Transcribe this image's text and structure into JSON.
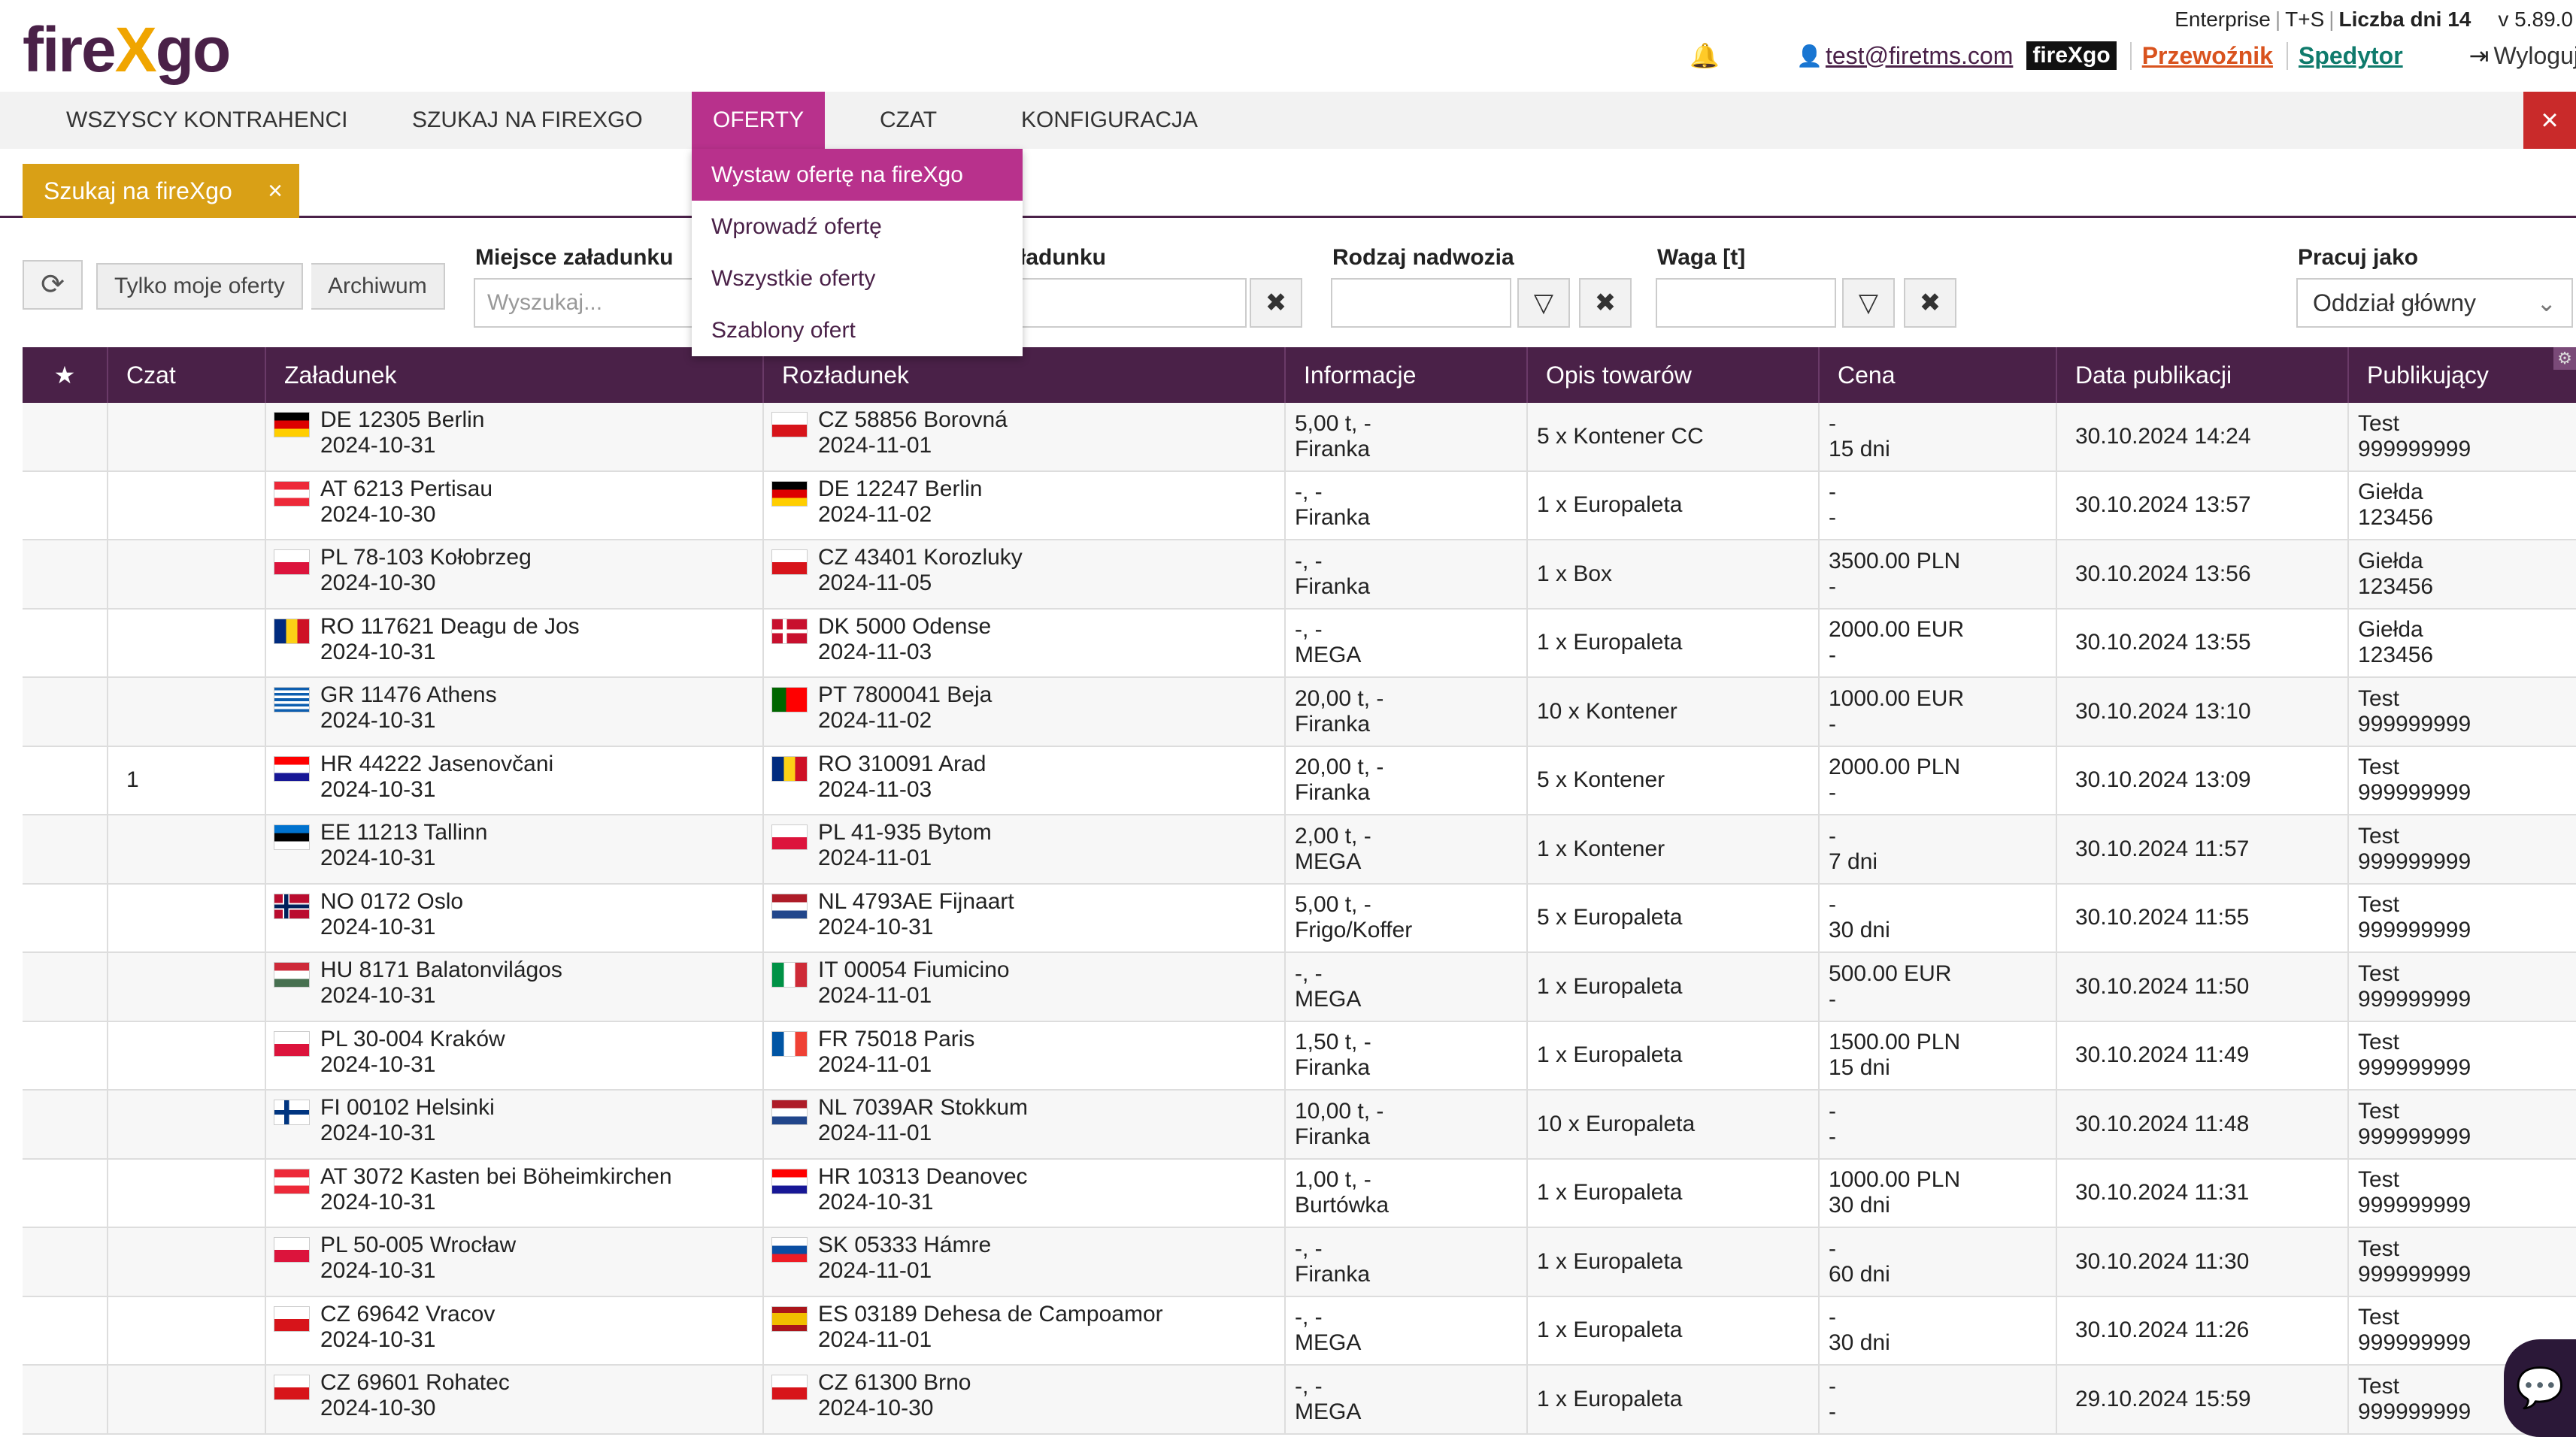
{
  "app": {
    "logo_fire": "fire",
    "logo_x": "X",
    "logo_go": "go",
    "edition": "Enterprise",
    "mode": "T+S",
    "days_label": "Liczba dni 14",
    "version": "v 5.89.0",
    "user_email": "test@firetms.com",
    "brand_tag": "fireXgo",
    "role_carrier": "Przewoźnik",
    "role_forwarder": "Spedytor",
    "logout": "Wyloguj"
  },
  "nav": {
    "items": [
      "Wszyscy kontrahenci",
      "Szukaj na fireXgo",
      "Oferty",
      "Czat",
      "Konfiguracja"
    ],
    "active": "Oferty",
    "close_icon": "×"
  },
  "dropdown": {
    "items": [
      "Wystaw ofertę na fireXgo",
      "Wprowadź ofertę",
      "Wszystkie oferty",
      "Szablony ofert"
    ],
    "active_index": 0
  },
  "tab": {
    "label": "Szukaj na fireXgo",
    "close": "×"
  },
  "filters": {
    "refresh_icon": "⟳",
    "my_offers": "Tylko moje oferty",
    "archive": "Archiwum",
    "loading_place_label": "Miejsce załadunku",
    "loading_place_placeholder": "Wyszukaj...",
    "unloading_place_label_partial": "ładunku",
    "unloading_placeholder_partial": "..",
    "clear_icon": "✖",
    "body_type_label": "Rodzaj nadwozia",
    "weight_label": "Waga [t]",
    "filter_icon": "▽",
    "work_as_label": "Pracuj jako",
    "work_as_value": "Oddział główny",
    "chevron": "⌄"
  },
  "table": {
    "star_header": "★",
    "headers": [
      "Czat",
      "Załadunek",
      "Rozładunek",
      "Informacje",
      "Opis towarów",
      "Cena",
      "Data publikacji",
      "Publikujący"
    ],
    "settings_icon": "⚙",
    "rows": [
      {
        "chat": "",
        "from_flag": "DE",
        "from": "DE 12305 Berlin",
        "from_date": "2024-10-31",
        "to_flag": "CZ",
        "to": "CZ 58856 Borovná",
        "to_date": "2024-11-01",
        "info1": "5,00 t, -",
        "info2": "Firanka",
        "goods": "5 x Kontener CC",
        "price1": "-",
        "price2": "15 dni",
        "published": "30.10.2024 14:24",
        "pub1": "Test",
        "pub2": "999999999"
      },
      {
        "chat": "",
        "from_flag": "AT",
        "from": "AT 6213 Pertisau",
        "from_date": "2024-10-30",
        "to_flag": "DE",
        "to": "DE 12247 Berlin",
        "to_date": "2024-11-02",
        "info1": "-, -",
        "info2": "Firanka",
        "goods": "1 x Europaleta",
        "price1": "-",
        "price2": "-",
        "published": "30.10.2024 13:57",
        "pub1": "Giełda",
        "pub2": "123456"
      },
      {
        "chat": "",
        "from_flag": "PL",
        "from": "PL 78-103 Kołobrzeg",
        "from_date": "2024-10-30",
        "to_flag": "CZ",
        "to": "CZ 43401 Korozluky",
        "to_date": "2024-11-05",
        "info1": "-, -",
        "info2": "Firanka",
        "goods": "1 x Box",
        "price1": "3500.00 PLN",
        "price2": "-",
        "published": "30.10.2024 13:56",
        "pub1": "Giełda",
        "pub2": "123456"
      },
      {
        "chat": "",
        "from_flag": "RO",
        "from": "RO 117621 Deagu de Jos",
        "from_date": "2024-10-31",
        "to_flag": "DK",
        "to": "DK 5000 Odense",
        "to_date": "2024-11-03",
        "info1": "-, -",
        "info2": "MEGA",
        "goods": "1 x Europaleta",
        "price1": "2000.00 EUR",
        "price2": "-",
        "published": "30.10.2024 13:55",
        "pub1": "Giełda",
        "pub2": "123456"
      },
      {
        "chat": "",
        "from_flag": "GR",
        "from": "GR 11476 Athens",
        "from_date": "2024-10-31",
        "to_flag": "PT",
        "to": "PT 7800041 Beja",
        "to_date": "2024-11-02",
        "info1": "20,00 t, -",
        "info2": "Firanka",
        "goods": "10 x Kontener",
        "price1": "1000.00 EUR",
        "price2": "-",
        "published": "30.10.2024 13:10",
        "pub1": "Test",
        "pub2": "999999999"
      },
      {
        "chat": "1",
        "from_flag": "HR",
        "from": "HR 44222 Jasenovčani",
        "from_date": "2024-10-31",
        "to_flag": "RO",
        "to": "RO 310091 Arad",
        "to_date": "2024-11-03",
        "info1": "20,00 t, -",
        "info2": "Firanka",
        "goods": "5 x Kontener",
        "price1": "2000.00 PLN",
        "price2": "-",
        "published": "30.10.2024 13:09",
        "pub1": "Test",
        "pub2": "999999999"
      },
      {
        "chat": "",
        "from_flag": "EE",
        "from": "EE 11213 Tallinn",
        "from_date": "2024-10-31",
        "to_flag": "PL",
        "to": "PL 41-935 Bytom",
        "to_date": "2024-11-01",
        "info1": "2,00 t, -",
        "info2": "MEGA",
        "goods": "1 x Kontener",
        "price1": "-",
        "price2": "7 dni",
        "published": "30.10.2024 11:57",
        "pub1": "Test",
        "pub2": "999999999"
      },
      {
        "chat": "",
        "from_flag": "NO",
        "from": "NO 0172 Oslo",
        "from_date": "2024-10-31",
        "to_flag": "NL",
        "to": "NL 4793AE Fijnaart",
        "to_date": "2024-10-31",
        "info1": "5,00 t, -",
        "info2": "Frigo/Koffer",
        "goods": "5 x Europaleta",
        "price1": "-",
        "price2": "30 dni",
        "published": "30.10.2024 11:55",
        "pub1": "Test",
        "pub2": "999999999"
      },
      {
        "chat": "",
        "from_flag": "HU",
        "from": "HU 8171 Balatonvilágos",
        "from_date": "2024-10-31",
        "to_flag": "IT",
        "to": "IT 00054 Fiumicino",
        "to_date": "2024-11-01",
        "info1": "-, -",
        "info2": "MEGA",
        "goods": "1 x Europaleta",
        "price1": "500.00 EUR",
        "price2": "-",
        "published": "30.10.2024 11:50",
        "pub1": "Test",
        "pub2": "999999999"
      },
      {
        "chat": "",
        "from_flag": "PL",
        "from": "PL 30-004 Kraków",
        "from_date": "2024-10-31",
        "to_flag": "FR",
        "to": "FR 75018 Paris",
        "to_date": "2024-11-01",
        "info1": "1,50 t, -",
        "info2": "Firanka",
        "goods": "1 x Europaleta",
        "price1": "1500.00 PLN",
        "price2": "15 dni",
        "published": "30.10.2024 11:49",
        "pub1": "Test",
        "pub2": "999999999"
      },
      {
        "chat": "",
        "from_flag": "FI",
        "from": "FI 00102 Helsinki",
        "from_date": "2024-10-31",
        "to_flag": "NL",
        "to": "NL 7039AR Stokkum",
        "to_date": "2024-11-01",
        "info1": "10,00 t, -",
        "info2": "Firanka",
        "goods": "10 x Europaleta",
        "price1": "-",
        "price2": "-",
        "published": "30.10.2024 11:48",
        "pub1": "Test",
        "pub2": "999999999"
      },
      {
        "chat": "",
        "from_flag": "AT",
        "from": "AT 3072 Kasten bei Böheimkirchen",
        "from_date": "2024-10-31",
        "to_flag": "HR",
        "to": "HR 10313 Deanovec",
        "to_date": "2024-10-31",
        "info1": "1,00 t, -",
        "info2": "Burtówka",
        "goods": "1 x Europaleta",
        "price1": "1000.00 PLN",
        "price2": "30 dni",
        "published": "30.10.2024 11:31",
        "pub1": "Test",
        "pub2": "999999999"
      },
      {
        "chat": "",
        "from_flag": "PL",
        "from": "PL 50-005 Wrocław",
        "from_date": "2024-10-31",
        "to_flag": "SK",
        "to": "SK 05333 Hámre",
        "to_date": "2024-11-01",
        "info1": "-, -",
        "info2": "Firanka",
        "goods": "1 x Europaleta",
        "price1": "-",
        "price2": "60 dni",
        "published": "30.10.2024 11:30",
        "pub1": "Test",
        "pub2": "999999999"
      },
      {
        "chat": "",
        "from_flag": "CZ",
        "from": "CZ 69642 Vracov",
        "from_date": "2024-10-31",
        "to_flag": "ES",
        "to": "ES 03189 Dehesa de Campoamor",
        "to_date": "2024-11-01",
        "info1": "-, -",
        "info2": "MEGA",
        "goods": "1 x Europaleta",
        "price1": "-",
        "price2": "30 dni",
        "published": "30.10.2024 11:26",
        "pub1": "Test",
        "pub2": "999999999"
      },
      {
        "chat": "",
        "from_flag": "CZ",
        "from": "CZ 69601 Rohatec",
        "from_date": "2024-10-30",
        "to_flag": "CZ",
        "to": "CZ 61300 Brno",
        "to_date": "2024-10-30",
        "info1": "-, -",
        "info2": "MEGA",
        "goods": "1 x Europaleta",
        "price1": "-",
        "price2": "-",
        "published": "29.10.2024 15:59",
        "pub1": "Test",
        "pub2": "999999999"
      }
    ]
  },
  "chat_widget_icon": "chat-bubble-icon"
}
